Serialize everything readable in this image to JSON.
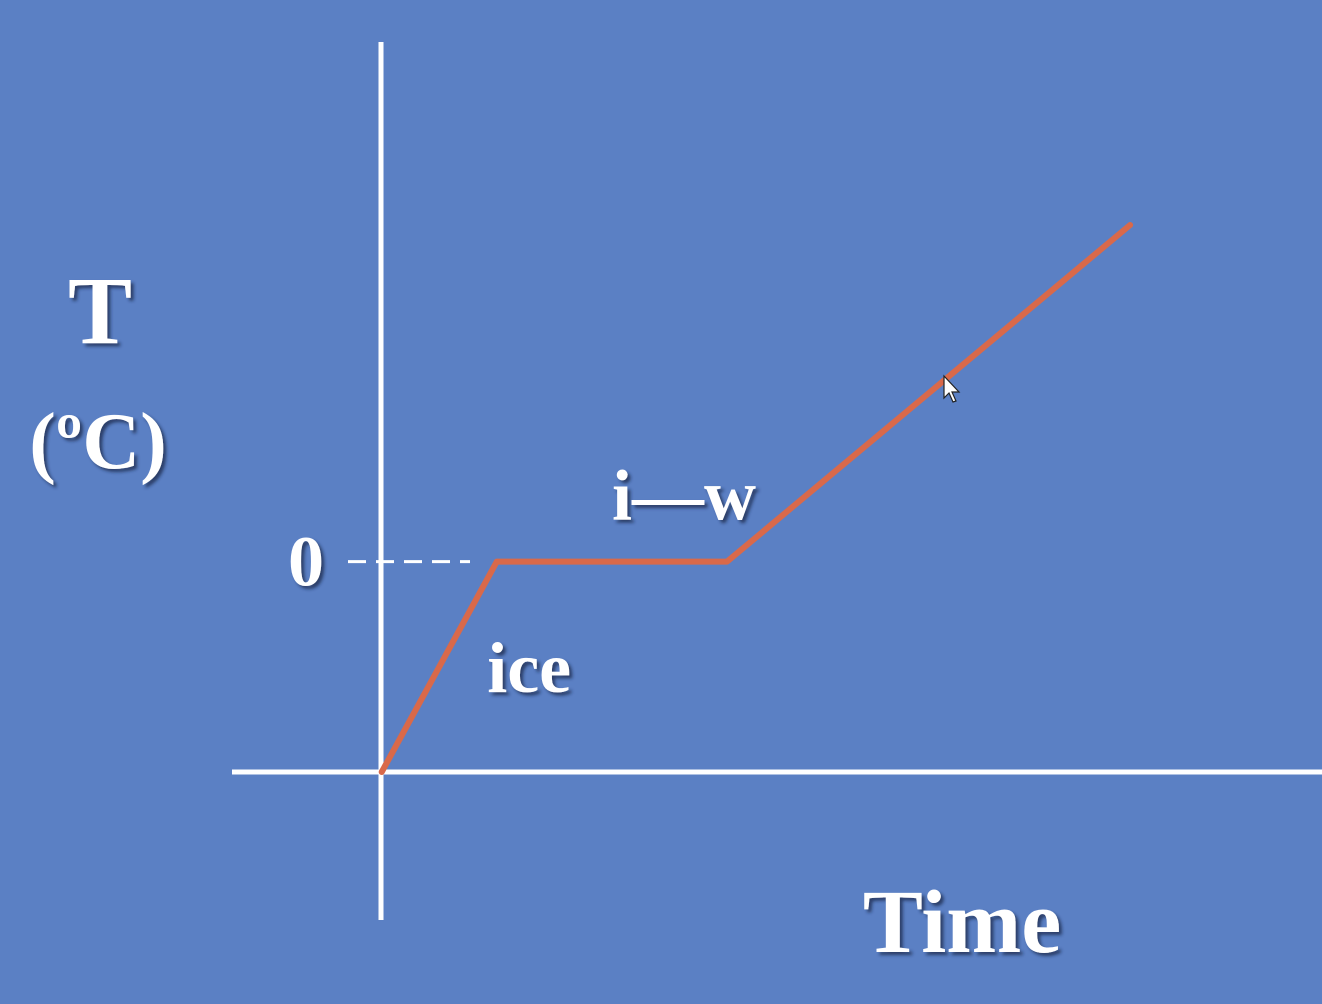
{
  "chart_data": {
    "type": "line",
    "title": "",
    "ylabel": "T",
    "ylabel_unit": "(ºC)",
    "xlabel": "Time",
    "y_tick_labels": [
      {
        "value": 0,
        "label": "0"
      }
    ],
    "grid": false,
    "series": [
      {
        "color": "#d9694a",
        "points": [
          {
            "x": 0.0,
            "y": -1.0
          },
          {
            "x": 0.6,
            "y": 0.0
          },
          {
            "x": 1.8,
            "y": 0.0
          },
          {
            "x": 3.9,
            "y": 1.6
          }
        ]
      }
    ],
    "annotations": [
      {
        "text": "ice",
        "x": 0.55,
        "y": -0.62
      },
      {
        "text": "i—w",
        "x": 1.2,
        "y": 0.2
      }
    ],
    "xlim": [
      -0.78,
      4.9
    ],
    "ylim": [
      -1.0,
      1.7
    ]
  },
  "colors": {
    "background": "#5b80c4",
    "axes": "#ffffff",
    "curve": "#d9694a",
    "text": "#ffffff"
  }
}
